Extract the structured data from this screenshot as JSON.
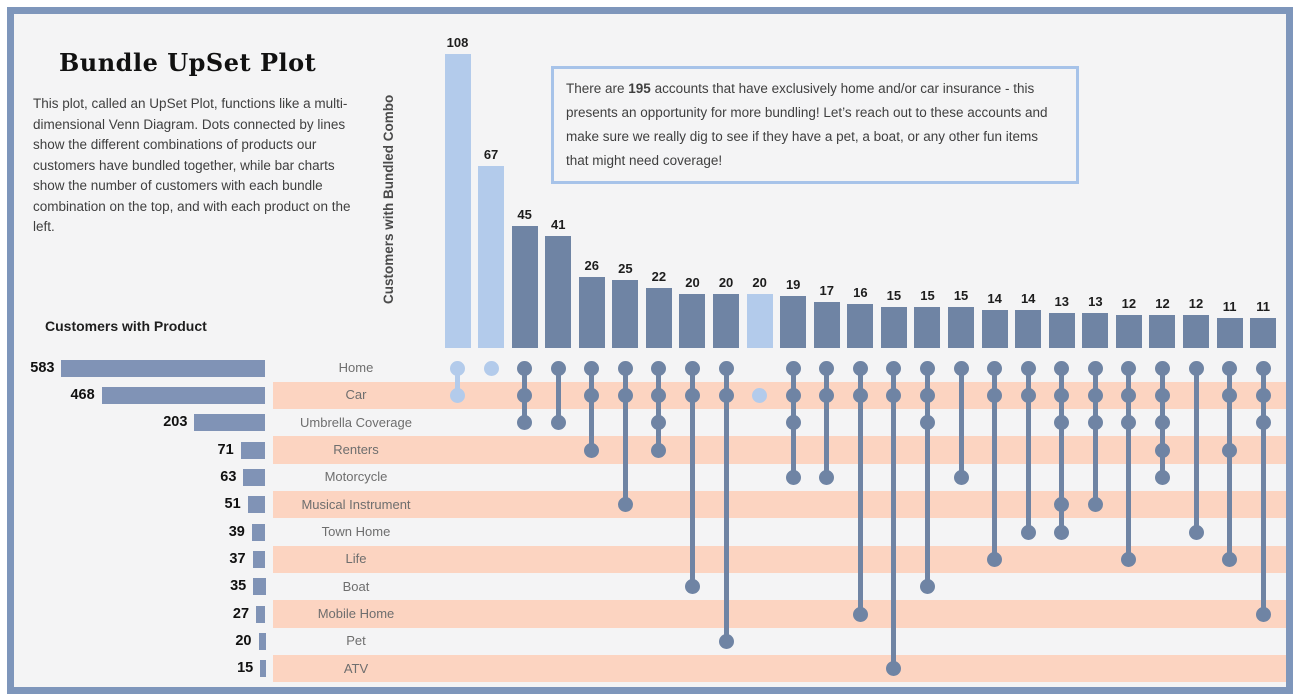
{
  "page": {
    "title": "Bundle UpSet Plot",
    "description": "This plot, called an UpSet Plot, functions like a multi-dimensional Venn Diagram. Dots connected by lines show the different combinations of products our customers have bundled together, while bar charts show the number of customers with each bundle combination on the top, and with each product on the left.",
    "left_chart_title": "Customers with Product",
    "top_axis_label": "Customers with Bundled Combo"
  },
  "annotation": {
    "text_before": "There are ",
    "highlight": "195",
    "text_after": " accounts that have exclusively home and/or car insurance - this presents an opportunity for more bundling! Let’s reach out to these accounts and make sure we really dig to see if they have a pet, a boat, or any other fun items that might need coverage!"
  },
  "colors": {
    "frame_border": "#7e96bb",
    "background": "#f4f4f5",
    "bar_dark": "#6f84a4",
    "bar_left": "#8093b6",
    "highlight_blue": "#b3cbeb",
    "band_peach": "#fcd4c1",
    "annotation_border": "#a7c3e9",
    "label_gray": "#6e6e6e",
    "text_dark": "#3f3f3f"
  },
  "chart_data": {
    "type": "upset",
    "title": "Bundle UpSet Plot",
    "top_bar_axis": "Customers with Bundled Combo",
    "left_bar_axis": "Customers with Product",
    "products": [
      {
        "name": "Home",
        "count": 583
      },
      {
        "name": "Car",
        "count": 468
      },
      {
        "name": "Umbrella Coverage",
        "count": 203
      },
      {
        "name": "Renters",
        "count": 71
      },
      {
        "name": "Motorcycle",
        "count": 63
      },
      {
        "name": "Musical Instrument",
        "count": 51
      },
      {
        "name": "Town Home",
        "count": 39
      },
      {
        "name": "Life",
        "count": 37
      },
      {
        "name": "Boat",
        "count": 35
      },
      {
        "name": "Mobile Home",
        "count": 27
      },
      {
        "name": "Pet",
        "count": 20
      },
      {
        "name": "ATV",
        "count": 15
      }
    ],
    "combos": [
      {
        "value": 108,
        "products": [
          "Home",
          "Car"
        ],
        "highlighted": true
      },
      {
        "value": 67,
        "products": [
          "Home"
        ],
        "highlighted": true
      },
      {
        "value": 45,
        "products": [
          "Home",
          "Car",
          "Umbrella Coverage"
        ],
        "highlighted": false
      },
      {
        "value": 41,
        "products": [
          "Home",
          "Umbrella Coverage"
        ],
        "highlighted": false
      },
      {
        "value": 26,
        "products": [
          "Home",
          "Car",
          "Renters"
        ],
        "highlighted": false
      },
      {
        "value": 25,
        "products": [
          "Home",
          "Car",
          "Musical Instrument"
        ],
        "highlighted": false
      },
      {
        "value": 22,
        "products": [
          "Home",
          "Car",
          "Umbrella Coverage",
          "Renters"
        ],
        "highlighted": false
      },
      {
        "value": 20,
        "products": [
          "Home",
          "Car",
          "Boat"
        ],
        "highlighted": false
      },
      {
        "value": 20,
        "products": [
          "Home",
          "Car",
          "Pet"
        ],
        "highlighted": false
      },
      {
        "value": 20,
        "products": [
          "Car"
        ],
        "highlighted": true
      },
      {
        "value": 19,
        "products": [
          "Home",
          "Car",
          "Umbrella Coverage",
          "Motorcycle"
        ],
        "highlighted": false
      },
      {
        "value": 17,
        "products": [
          "Home",
          "Car",
          "Motorcycle"
        ],
        "highlighted": false
      },
      {
        "value": 16,
        "products": [
          "Home",
          "Car",
          "Mobile Home"
        ],
        "highlighted": false
      },
      {
        "value": 15,
        "products": [
          "Home",
          "Car",
          "ATV"
        ],
        "highlighted": false
      },
      {
        "value": 15,
        "products": [
          "Home",
          "Car",
          "Umbrella Coverage",
          "Boat"
        ],
        "highlighted": false
      },
      {
        "value": 15,
        "products": [
          "Home",
          "Motorcycle"
        ],
        "highlighted": false
      },
      {
        "value": 14,
        "products": [
          "Home",
          "Car",
          "Life"
        ],
        "highlighted": false
      },
      {
        "value": 14,
        "products": [
          "Home",
          "Car",
          "Town Home"
        ],
        "highlighted": false
      },
      {
        "value": 13,
        "products": [
          "Home",
          "Car",
          "Umbrella Coverage",
          "Musical Instrument",
          "Town Home"
        ],
        "highlighted": false
      },
      {
        "value": 13,
        "products": [
          "Home",
          "Car",
          "Umbrella Coverage",
          "Musical Instrument"
        ],
        "highlighted": false
      },
      {
        "value": 12,
        "products": [
          "Home",
          "Car",
          "Umbrella Coverage",
          "Life"
        ],
        "highlighted": false
      },
      {
        "value": 12,
        "products": [
          "Home",
          "Car",
          "Umbrella Coverage",
          "Renters",
          "Motorcycle"
        ],
        "highlighted": false
      },
      {
        "value": 12,
        "products": [
          "Home",
          "Town Home"
        ],
        "highlighted": false
      },
      {
        "value": 11,
        "products": [
          "Home",
          "Car",
          "Renters",
          "Life"
        ],
        "highlighted": false
      },
      {
        "value": 11,
        "products": [
          "Home",
          "Car",
          "Umbrella Coverage",
          "Mobile Home"
        ],
        "highlighted": false
      }
    ]
  }
}
